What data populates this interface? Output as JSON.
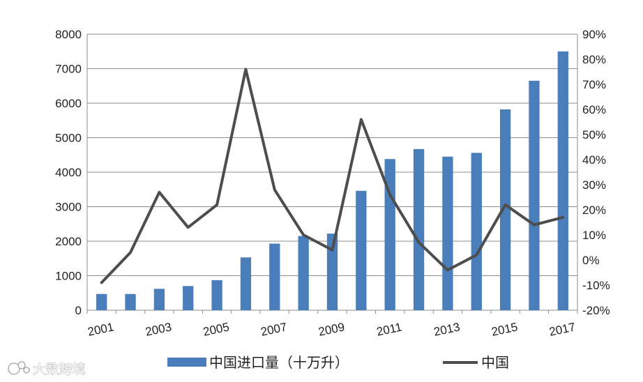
{
  "chart_data": {
    "type": "bar",
    "categories": [
      "2001",
      "2002",
      "2003",
      "2004",
      "2005",
      "2006",
      "2007",
      "2008",
      "2009",
      "2010",
      "2011",
      "2012",
      "2013",
      "2014",
      "2015",
      "2016",
      "2017"
    ],
    "x_tick_labels": [
      "2001",
      "2003",
      "2005",
      "2007",
      "2009",
      "2011",
      "2013",
      "2015",
      "2017"
    ],
    "series": [
      {
        "name": "中国进口量（十万升）",
        "type": "bar",
        "axis": "left",
        "color": "#4a7ebb",
        "values": [
          470,
          470,
          620,
          700,
          870,
          1530,
          1930,
          2150,
          2220,
          3460,
          4380,
          4670,
          4450,
          4560,
          5820,
          6650,
          7500
        ]
      },
      {
        "name": "中国",
        "type": "line",
        "axis": "right",
        "color": "#4d4d4d",
        "values": [
          -9,
          3,
          27,
          13,
          22,
          76,
          28,
          10,
          4,
          56,
          26,
          7,
          -4,
          2,
          22,
          14,
          17
        ]
      }
    ],
    "y_left": {
      "min": 0,
      "max": 8000,
      "step": 1000,
      "tick_labels": [
        "0",
        "1000",
        "2000",
        "3000",
        "4000",
        "5000",
        "6000",
        "7000",
        "8000"
      ]
    },
    "y_right": {
      "min": -20,
      "max": 90,
      "step": 10,
      "tick_labels": [
        "-20%",
        "-10%",
        "0%",
        "10%",
        "20%",
        "30%",
        "40%",
        "50%",
        "60%",
        "70%",
        "80%",
        "90%"
      ]
    },
    "grid": true,
    "legend_position": "bottom",
    "legend": [
      {
        "label": "中国进口量（十万升）",
        "kind": "bar",
        "color": "#4a7ebb"
      },
      {
        "label": "中国",
        "kind": "line",
        "color": "#4d4d4d"
      }
    ]
  },
  "watermark": {
    "text": "大数跨境"
  }
}
